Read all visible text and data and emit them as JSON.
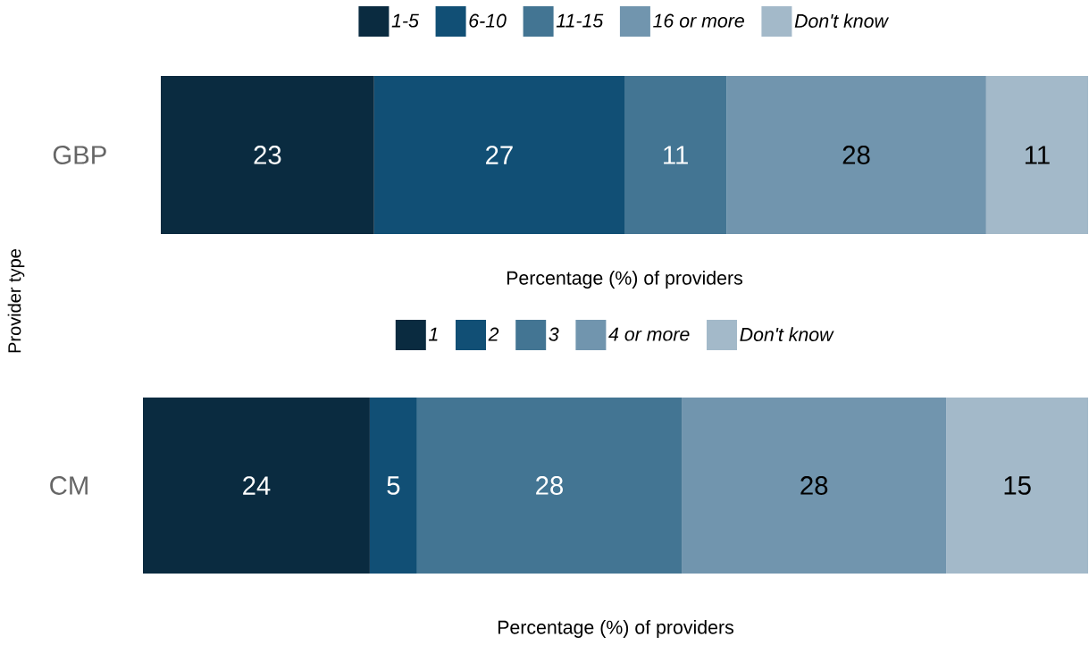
{
  "chart_data": [
    {
      "type": "bar",
      "orientation": "horizontal",
      "stacked": true,
      "ylabel": "Provider type",
      "xlabel": "Percentage (%) of providers",
      "categories": [
        "GBP"
      ],
      "xlim": [
        0,
        100
      ],
      "tick_labels": "y",
      "legend": "top",
      "data_labels": true,
      "series": [
        {
          "name": "1-5",
          "color": "#0a2b40",
          "values": [
            23
          ]
        },
        {
          "name": "6-10",
          "color": "#114f75",
          "values": [
            27
          ]
        },
        {
          "name": "11-15",
          "color": "#437593",
          "values": [
            11
          ]
        },
        {
          "name": "16 or more",
          "color": "#7195ae",
          "values": [
            28
          ]
        },
        {
          "name": "Don't know",
          "color": "#a3b9c9",
          "values": [
            11
          ]
        }
      ]
    },
    {
      "type": "bar",
      "orientation": "horizontal",
      "stacked": true,
      "xlabel": "Percentage (%) of providers",
      "categories": [
        "CM"
      ],
      "xlim": [
        0,
        100
      ],
      "tick_labels": "y",
      "legend": "top",
      "data_labels": true,
      "series": [
        {
          "name": "1",
          "color": "#0a2b40",
          "values": [
            24
          ]
        },
        {
          "name": "2",
          "color": "#114f75",
          "values": [
            5
          ]
        },
        {
          "name": "3",
          "color": "#437593",
          "values": [
            28
          ]
        },
        {
          "name": "4 or more",
          "color": "#7195ae",
          "values": [
            28
          ]
        },
        {
          "name": "Don't know",
          "color": "#a3b9c9",
          "values": [
            15
          ]
        }
      ]
    }
  ]
}
